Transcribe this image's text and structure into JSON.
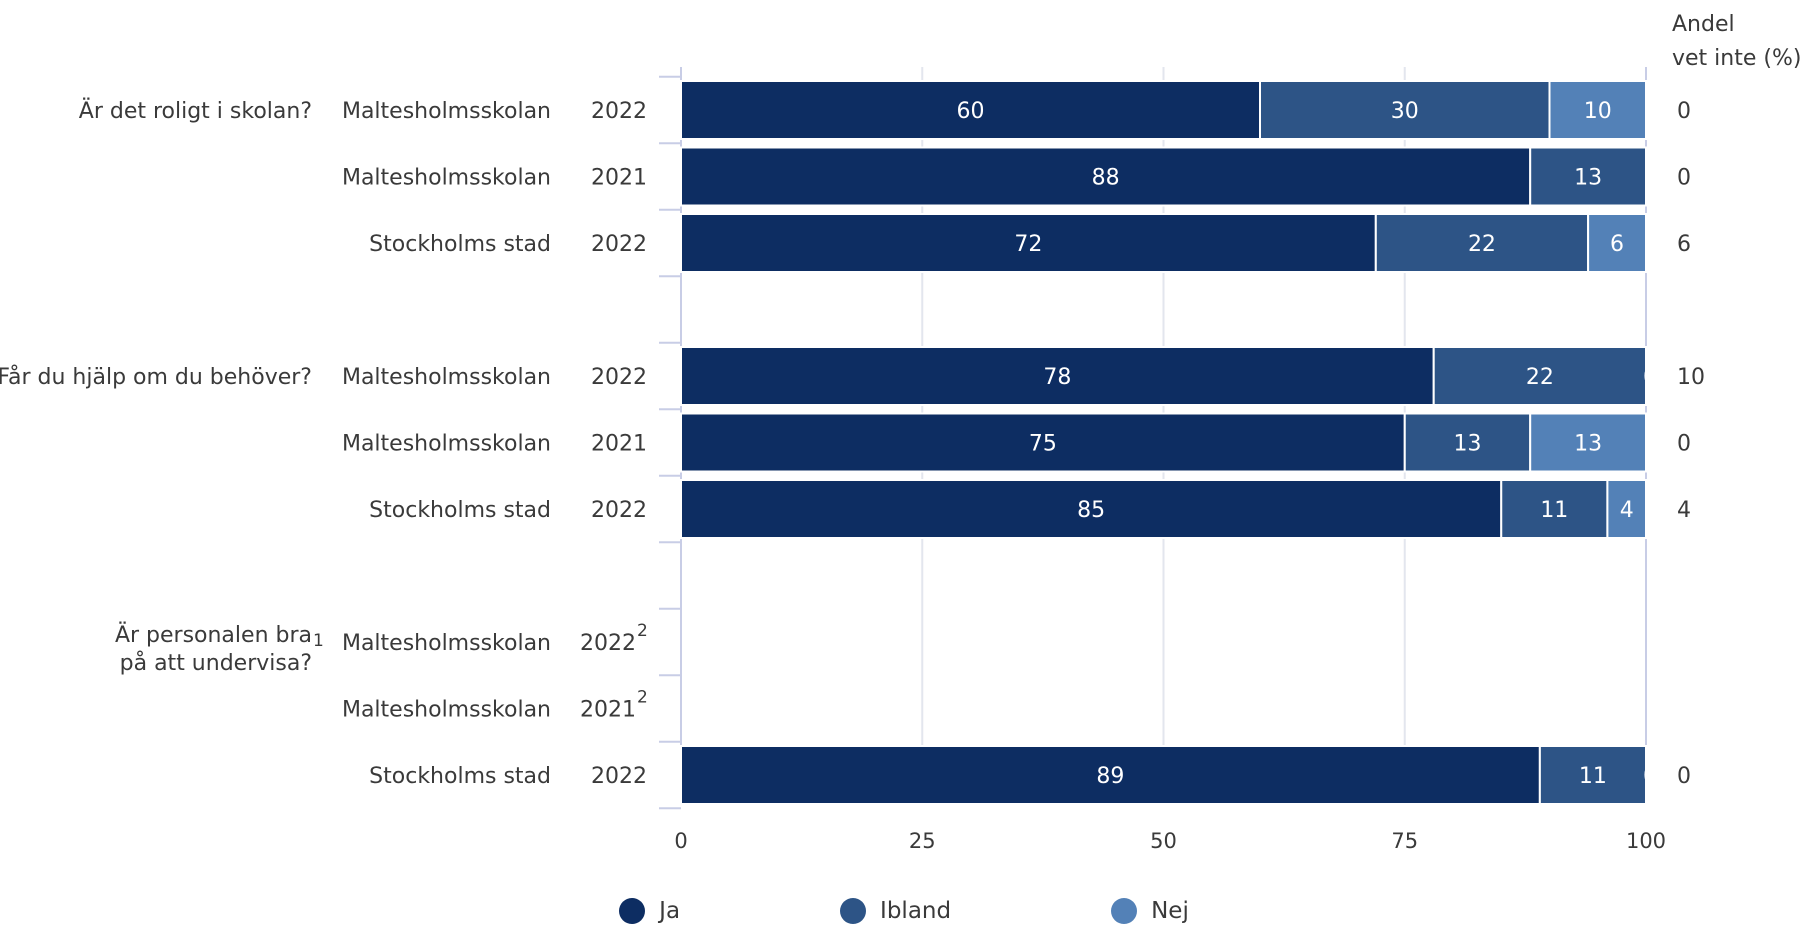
{
  "chart_data": {
    "type": "bar",
    "orientation": "horizontal",
    "stacked": true,
    "xlim": [
      0,
      100
    ],
    "x_ticks": [
      0,
      25,
      50,
      75,
      100
    ],
    "grid": true,
    "legend_position": "bottom",
    "right_header": [
      "Andel",
      "vet inte (%)"
    ],
    "series": [
      {
        "name": "Ja",
        "color": "#0d2d62"
      },
      {
        "name": "Ibland",
        "color": "#2d5486"
      },
      {
        "name": "Nej",
        "color": "#5381b7"
      }
    ],
    "groups": [
      {
        "question_lines": [
          "Är det roligt i skolan?"
        ],
        "question_sup": "",
        "rows": [
          {
            "unit": "Maltesholmsskolan",
            "year": "2022",
            "year_sup": "",
            "values": [
              60,
              30,
              10
            ],
            "labels": [
              "60",
              "30",
              "10"
            ],
            "dont_know": "0"
          },
          {
            "unit": "Maltesholmsskolan",
            "year": "2021",
            "year_sup": "",
            "values": [
              88,
              13,
              0
            ],
            "labels": [
              "88",
              "13",
              "0"
            ],
            "dont_know": "0"
          },
          {
            "unit": "Stockholms stad",
            "year": "2022",
            "year_sup": "",
            "values": [
              72,
              22,
              6
            ],
            "labels": [
              "72",
              "22",
              "6"
            ],
            "dont_know": "6"
          }
        ]
      },
      {
        "question_lines": [
          "Får du hjälp om du behöver?"
        ],
        "question_sup": "",
        "rows": [
          {
            "unit": "Maltesholmsskolan",
            "year": "2022",
            "year_sup": "",
            "values": [
              78,
              22,
              0
            ],
            "labels": [
              "78",
              "22",
              "0"
            ],
            "dont_know": "10"
          },
          {
            "unit": "Maltesholmsskolan",
            "year": "2021",
            "year_sup": "",
            "values": [
              75,
              13,
              13
            ],
            "labels": [
              "75",
              "13",
              "13"
            ],
            "dont_know": "0"
          },
          {
            "unit": "Stockholms stad",
            "year": "2022",
            "year_sup": "",
            "values": [
              85,
              11,
              4
            ],
            "labels": [
              "85",
              "11",
              "4"
            ],
            "dont_know": "4"
          }
        ]
      },
      {
        "question_lines": [
          "Är personalen bra",
          "på att undervisa?"
        ],
        "question_sup": "1",
        "rows": [
          {
            "unit": "Maltesholmsskolan",
            "year": "2022",
            "year_sup": "2",
            "values": [],
            "labels": [],
            "dont_know": ""
          },
          {
            "unit": "Maltesholmsskolan",
            "year": "2021",
            "year_sup": "2",
            "values": [],
            "labels": [],
            "dont_know": ""
          },
          {
            "unit": "Stockholms stad",
            "year": "2022",
            "year_sup": "",
            "values": [
              89,
              11,
              0
            ],
            "labels": [
              "89",
              "11",
              "0"
            ],
            "dont_know": "0"
          }
        ]
      }
    ]
  }
}
